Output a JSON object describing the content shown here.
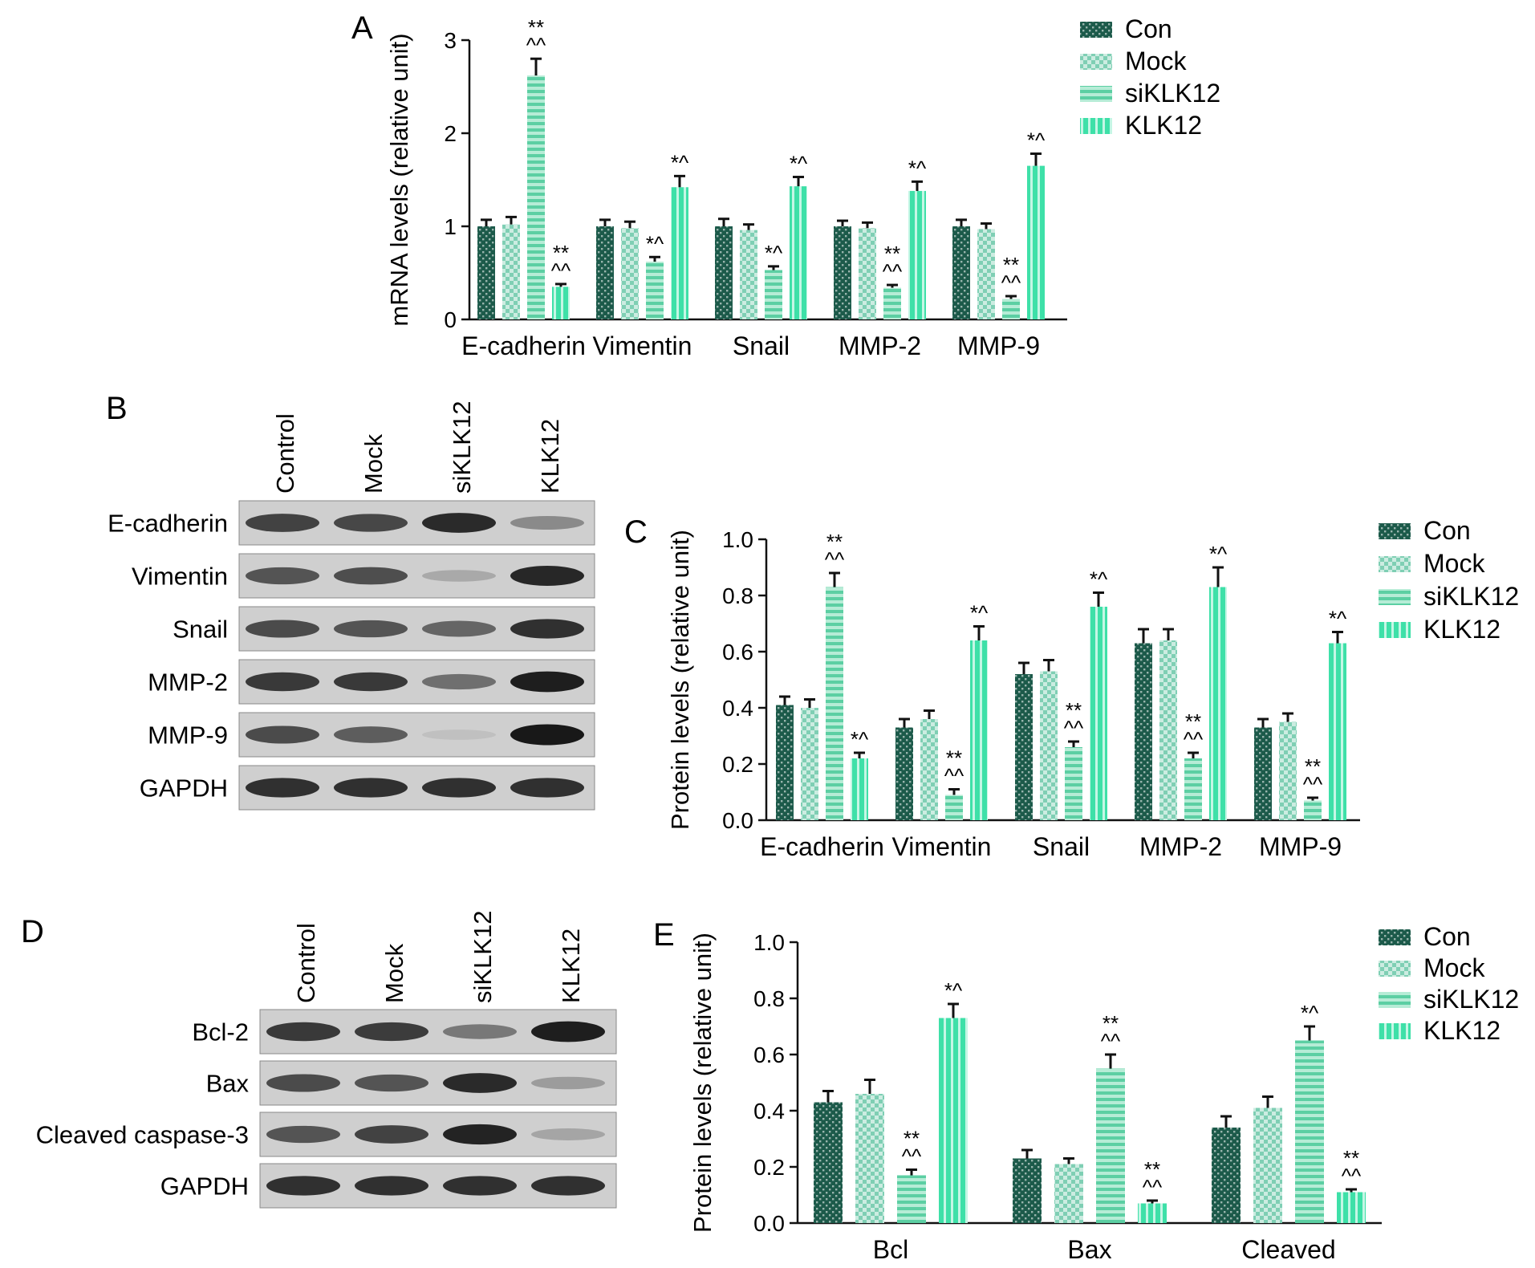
{
  "colors": {
    "con": "#1c5a4a",
    "mock": "#7fcfb4",
    "siklk12": "#b6ecd6",
    "klk12": "#3ee0a8",
    "stripe": "#ffffff",
    "axis": "#111111"
  },
  "panels": {
    "A": "A",
    "B": "B",
    "C": "C",
    "D": "D",
    "E": "E"
  },
  "chart_data": [
    {
      "id": "A",
      "type": "bar",
      "ylabel": "mRNA levels (relative unit)",
      "ylim": [
        0,
        3
      ],
      "yticks": [
        "0",
        "1",
        "2",
        "3"
      ],
      "categories": [
        "E-cadherin",
        "Vimentin",
        "Snail",
        "MMP-2",
        "MMP-9"
      ],
      "series": [
        {
          "name": "Con",
          "key": "con",
          "values": [
            1.0,
            1.0,
            1.0,
            1.0,
            1.0
          ],
          "errors": [
            0.07,
            0.07,
            0.08,
            0.06,
            0.07
          ],
          "sig": [
            "",
            "",
            "",
            "",
            ""
          ]
        },
        {
          "name": "Mock",
          "key": "mock",
          "values": [
            1.02,
            0.98,
            0.96,
            0.98,
            0.97
          ],
          "errors": [
            0.08,
            0.07,
            0.06,
            0.06,
            0.06
          ],
          "sig": [
            "",
            "",
            "",
            "",
            ""
          ]
        },
        {
          "name": "siKLK12",
          "key": "siklk12",
          "values": [
            2.62,
            0.62,
            0.53,
            0.34,
            0.22
          ],
          "errors": [
            0.18,
            0.05,
            0.04,
            0.03,
            0.03
          ],
          "sig": [
            "**\n^^",
            "*^",
            "*^",
            "**\n^^",
            "**\n^^"
          ]
        },
        {
          "name": "KLK12",
          "key": "klk12",
          "values": [
            0.35,
            1.42,
            1.43,
            1.38,
            1.65
          ],
          "errors": [
            0.03,
            0.12,
            0.1,
            0.1,
            0.13
          ],
          "sig": [
            "**\n^^",
            "*^",
            "*^",
            "*^",
            "*^"
          ]
        }
      ],
      "legend": "top-right"
    },
    {
      "id": "C",
      "type": "bar",
      "ylabel": "Protein levels (relative unit)",
      "ylim": [
        0,
        1.0
      ],
      "yticks": [
        "0.0",
        "0.2",
        "0.4",
        "0.6",
        "0.8",
        "1.0"
      ],
      "categories": [
        "E-cadherin",
        "Vimentin",
        "Snail",
        "MMP-2",
        "MMP-9"
      ],
      "series": [
        {
          "name": "Con",
          "key": "con",
          "values": [
            0.41,
            0.33,
            0.52,
            0.63,
            0.33
          ],
          "errors": [
            0.03,
            0.03,
            0.04,
            0.05,
            0.03
          ],
          "sig": [
            "",
            "",
            "",
            "",
            ""
          ]
        },
        {
          "name": "Mock",
          "key": "mock",
          "values": [
            0.4,
            0.36,
            0.53,
            0.64,
            0.35
          ],
          "errors": [
            0.03,
            0.03,
            0.04,
            0.04,
            0.03
          ],
          "sig": [
            "",
            "",
            "",
            "",
            ""
          ]
        },
        {
          "name": "siKLK12",
          "key": "siklk12",
          "values": [
            0.83,
            0.09,
            0.26,
            0.22,
            0.07
          ],
          "errors": [
            0.05,
            0.02,
            0.02,
            0.02,
            0.01
          ],
          "sig": [
            "**\n^^",
            "**\n^^",
            "**\n^^",
            "**\n^^",
            "**\n^^"
          ]
        },
        {
          "name": "KLK12",
          "key": "klk12",
          "values": [
            0.22,
            0.64,
            0.76,
            0.83,
            0.63
          ],
          "errors": [
            0.02,
            0.05,
            0.05,
            0.07,
            0.04
          ],
          "sig": [
            "*^",
            "*^",
            "*^",
            "*^",
            "*^"
          ]
        }
      ],
      "legend": "top-right"
    },
    {
      "id": "E",
      "type": "bar",
      "ylabel": "Protein levels (relative unit)",
      "ylim": [
        0,
        1.0
      ],
      "yticks": [
        "0.0",
        "0.2",
        "0.4",
        "0.6",
        "0.8",
        "1.0"
      ],
      "categories": [
        "Bcl",
        "Bax",
        "Cleaved"
      ],
      "series": [
        {
          "name": "Con",
          "key": "con",
          "values": [
            0.43,
            0.23,
            0.34
          ],
          "errors": [
            0.04,
            0.03,
            0.04
          ],
          "sig": [
            "",
            "",
            ""
          ]
        },
        {
          "name": "Mock",
          "key": "mock",
          "values": [
            0.46,
            0.21,
            0.41
          ],
          "errors": [
            0.05,
            0.02,
            0.04
          ],
          "sig": [
            "",
            "",
            ""
          ]
        },
        {
          "name": "siKLK12",
          "key": "siklk12",
          "values": [
            0.17,
            0.55,
            0.65
          ],
          "errors": [
            0.02,
            0.05,
            0.05
          ],
          "sig": [
            "**\n^^",
            "**\n^^",
            "*^"
          ]
        },
        {
          "name": "KLK12",
          "key": "klk12",
          "values": [
            0.73,
            0.07,
            0.11
          ],
          "errors": [
            0.05,
            0.01,
            0.01
          ],
          "sig": [
            "*^",
            "**\n^^",
            "**\n^^"
          ]
        }
      ],
      "legend": "top-right"
    }
  ],
  "blots": [
    {
      "id": "B",
      "lanes": [
        "Control",
        "Mock",
        "siKLK12",
        "KLK12"
      ],
      "rows": [
        {
          "label": "E-cadherin",
          "intensity": [
            0.75,
            0.72,
            0.88,
            0.35
          ]
        },
        {
          "label": "Vimentin",
          "intensity": [
            0.65,
            0.68,
            0.18,
            0.9
          ]
        },
        {
          "label": "Snail",
          "intensity": [
            0.7,
            0.65,
            0.55,
            0.85
          ]
        },
        {
          "label": "MMP-2",
          "intensity": [
            0.8,
            0.8,
            0.5,
            0.95
          ]
        },
        {
          "label": "MMP-9",
          "intensity": [
            0.7,
            0.6,
            0.05,
            0.98
          ]
        },
        {
          "label": "GAPDH",
          "intensity": [
            0.85,
            0.85,
            0.85,
            0.85
          ]
        }
      ]
    },
    {
      "id": "D",
      "lanes": [
        "Control",
        "Mock",
        "siKLK12",
        "KLK12"
      ],
      "rows": [
        {
          "label": "Bcl-2",
          "intensity": [
            0.8,
            0.78,
            0.45,
            0.95
          ]
        },
        {
          "label": "Bax",
          "intensity": [
            0.7,
            0.65,
            0.88,
            0.25
          ]
        },
        {
          "label": "Cleaved caspase-3",
          "intensity": [
            0.65,
            0.75,
            0.92,
            0.2
          ]
        },
        {
          "label": "GAPDH",
          "intensity": [
            0.85,
            0.85,
            0.85,
            0.85
          ]
        }
      ]
    }
  ]
}
